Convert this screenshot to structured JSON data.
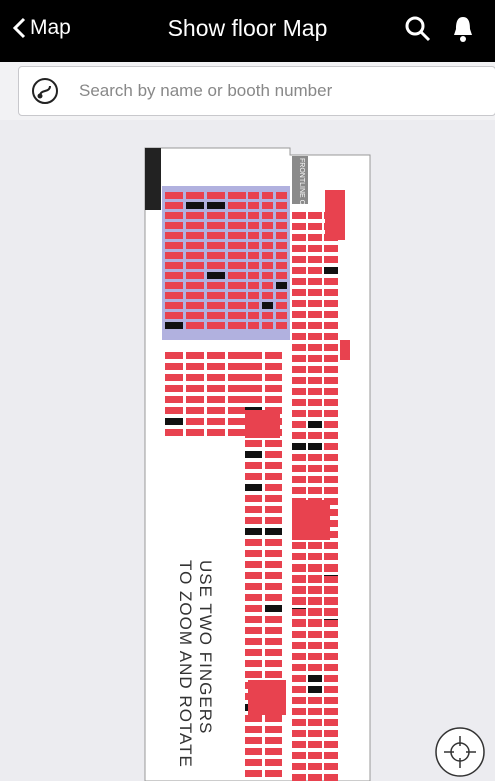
{
  "header": {
    "back_label": "Map",
    "title": "Show floor Map"
  },
  "search": {
    "placeholder": "Search by name or booth number"
  },
  "map": {
    "instruction": [
      "USE TWO FINGERS",
      "TO ZOOM AND ROTATE"
    ],
    "cafe_label": "FRONTLINE CAFE"
  }
}
